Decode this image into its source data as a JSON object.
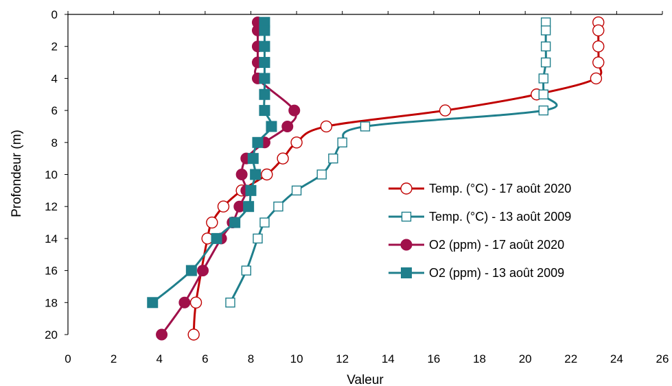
{
  "chart_data": {
    "type": "line",
    "xlabel": "Valeur",
    "ylabel": "Profondeur (m)",
    "xlim": [
      0,
      26
    ],
    "ylim": [
      0,
      20
    ],
    "y_inverted": true,
    "x_ticks": [
      "0",
      "2",
      "4",
      "6",
      "8",
      "10",
      "12",
      "14",
      "16",
      "18",
      "20",
      "22",
      "24",
      "26"
    ],
    "y_ticks": [
      "0",
      "2",
      "4",
      "6",
      "8",
      "10",
      "12",
      "14",
      "16",
      "18",
      "20"
    ],
    "grid": false,
    "legend_position": "right",
    "series": [
      {
        "name": "Temp. (°C) - 17 août 2020",
        "color": "#c00000",
        "marker": "circle-open",
        "points": [
          [
            23.2,
            0.5
          ],
          [
            23.2,
            1
          ],
          [
            23.2,
            2
          ],
          [
            23.2,
            3
          ],
          [
            23.1,
            4
          ],
          [
            20.5,
            5
          ],
          [
            16.5,
            6
          ],
          [
            11.3,
            7
          ],
          [
            10.0,
            8
          ],
          [
            9.4,
            9
          ],
          [
            8.7,
            10
          ],
          [
            7.6,
            11
          ],
          [
            6.8,
            12
          ],
          [
            6.3,
            13
          ],
          [
            6.1,
            14
          ],
          [
            5.6,
            18
          ],
          [
            5.5,
            20
          ]
        ]
      },
      {
        "name": "Temp. (°C) - 13 août 2009",
        "color": "#1f7f8c",
        "marker": "square-open",
        "points": [
          [
            20.9,
            0.5
          ],
          [
            20.9,
            1
          ],
          [
            20.9,
            2
          ],
          [
            20.9,
            3
          ],
          [
            20.8,
            4
          ],
          [
            20.8,
            5
          ],
          [
            20.8,
            6
          ],
          [
            13.0,
            7
          ],
          [
            12.0,
            8
          ],
          [
            11.6,
            9
          ],
          [
            11.1,
            10
          ],
          [
            10.0,
            11
          ],
          [
            9.2,
            12
          ],
          [
            8.6,
            13
          ],
          [
            8.3,
            14
          ],
          [
            7.8,
            16
          ],
          [
            7.1,
            18
          ]
        ]
      },
      {
        "name": "O2 (ppm) - 17 août 2020",
        "color": "#a0104a",
        "marker": "circle-filled",
        "points": [
          [
            8.3,
            0.5
          ],
          [
            8.3,
            1
          ],
          [
            8.3,
            2
          ],
          [
            8.3,
            3
          ],
          [
            8.3,
            4
          ],
          [
            9.9,
            6
          ],
          [
            9.6,
            7
          ],
          [
            8.6,
            8
          ],
          [
            7.8,
            9
          ],
          [
            7.6,
            10
          ],
          [
            7.8,
            11
          ],
          [
            7.5,
            12
          ],
          [
            7.2,
            13
          ],
          [
            6.7,
            14
          ],
          [
            5.9,
            16
          ],
          [
            5.1,
            18
          ],
          [
            4.1,
            20
          ]
        ]
      },
      {
        "name": "O2 (ppm) - 13 août 2009",
        "color": "#1f7f8c",
        "marker": "square-filled",
        "points": [
          [
            8.6,
            0.5
          ],
          [
            8.6,
            1
          ],
          [
            8.6,
            2
          ],
          [
            8.6,
            3
          ],
          [
            8.6,
            4
          ],
          [
            8.6,
            5
          ],
          [
            8.6,
            6
          ],
          [
            8.9,
            7
          ],
          [
            8.3,
            8
          ],
          [
            8.1,
            9
          ],
          [
            8.2,
            10
          ],
          [
            8.0,
            11
          ],
          [
            7.9,
            12
          ],
          [
            7.3,
            13
          ],
          [
            6.5,
            14
          ],
          [
            5.4,
            16
          ],
          [
            3.7,
            18
          ]
        ]
      }
    ]
  }
}
